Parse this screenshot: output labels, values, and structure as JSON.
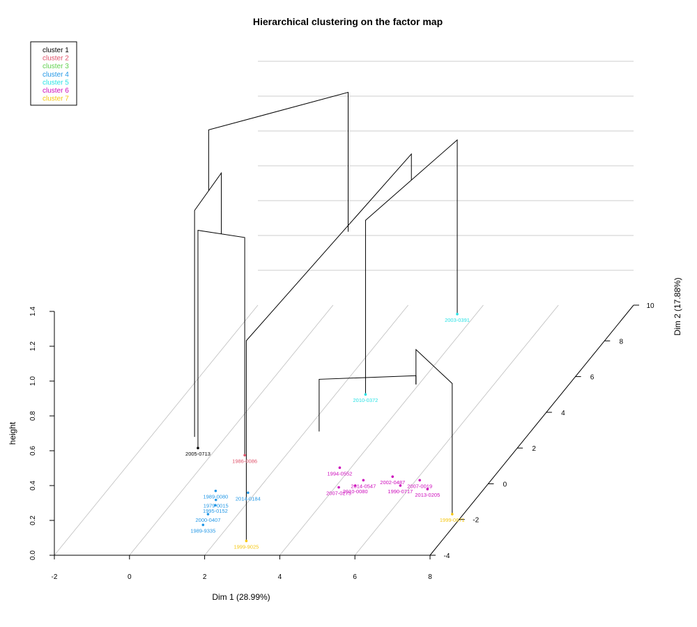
{
  "chart_data": {
    "type": "scatter",
    "title": "Hierarchical clustering on the factor map",
    "xlabel": "Dim 1 (28.99%)",
    "ylabel": "Dim 2 (17.88%)",
    "zlabel": "height",
    "xlim": [
      -2,
      8
    ],
    "ylim": [
      -4,
      10
    ],
    "zlim": [
      0,
      1.4
    ],
    "x_ticks": [
      "-2",
      "0",
      "2",
      "4",
      "6",
      "8"
    ],
    "y_ticks": [
      "-4",
      "-2",
      "0",
      "2",
      "4",
      "6",
      "8",
      "10"
    ],
    "z_ticks": [
      "0.0",
      "0.2",
      "0.4",
      "0.6",
      "0.8",
      "1.0",
      "1.2",
      "1.4"
    ],
    "grid": true,
    "legend_position": "top-left",
    "legend": [
      {
        "label": "cluster 1",
        "color": "#000000"
      },
      {
        "label": "cluster 2",
        "color": "#df536b"
      },
      {
        "label": "cluster 3",
        "color": "#61d04f"
      },
      {
        "label": "cluster 4",
        "color": "#2297e6"
      },
      {
        "label": "cluster 5",
        "color": "#28e2e5"
      },
      {
        "label": "cluster 6",
        "color": "#cd0bbc"
      },
      {
        "label": "cluster 7",
        "color": "#f5c710"
      }
    ],
    "points": [
      {
        "label": "2005-0713",
        "cluster": 1,
        "x": -0.5,
        "y": 2.0
      },
      {
        "label": "1986-0086",
        "cluster": 2,
        "x": 0.9,
        "y": 1.6
      },
      {
        "label": "2000-0407",
        "cluster": 4,
        "x": 1.2,
        "y": -1.7
      },
      {
        "label": "1989-9335",
        "cluster": 4,
        "x": 1.3,
        "y": -2.3
      },
      {
        "label": "1995-0152",
        "cluster": 4,
        "x": 1.2,
        "y": -1.2
      },
      {
        "label": "1979-0015",
        "cluster": 4,
        "x": 1.1,
        "y": -0.9
      },
      {
        "label": "1989-0080",
        "cluster": 4,
        "x": 0.9,
        "y": -0.4
      },
      {
        "label": "2014-0184",
        "cluster": 4,
        "x": 1.8,
        "y": -0.5
      },
      {
        "label": "2003-0391",
        "cluster": 5,
        "x": 3.5,
        "y": 9.5
      },
      {
        "label": "2010-0372",
        "cluster": 5,
        "x": 2.8,
        "y": 5.0
      },
      {
        "label": "1994-0552",
        "cluster": 6,
        "x": 3.7,
        "y": 0.9
      },
      {
        "label": "2007-0275",
        "cluster": 6,
        "x": 4.1,
        "y": -0.2
      },
      {
        "label": "2010-0080",
        "cluster": 6,
        "x": 4.5,
        "y": -0.1
      },
      {
        "label": "2014-0547",
        "cluster": 6,
        "x": 4.6,
        "y": 0.2
      },
      {
        "label": "2002-0487",
        "cluster": 6,
        "x": 5.3,
        "y": 0.4
      },
      {
        "label": "1990-0717",
        "cluster": 6,
        "x": 5.7,
        "y": -0.1
      },
      {
        "label": "2007-0019",
        "cluster": 6,
        "x": 6.1,
        "y": 0.2
      },
      {
        "label": "2013-0205",
        "cluster": 6,
        "x": 6.5,
        "y": -0.3
      },
      {
        "label": "1999-9025",
        "cluster": 7,
        "x": 2.8,
        "y": -3.2
      },
      {
        "label": "1999-0671",
        "cluster": 7,
        "x": 7.7,
        "y": -1.7
      }
    ]
  }
}
